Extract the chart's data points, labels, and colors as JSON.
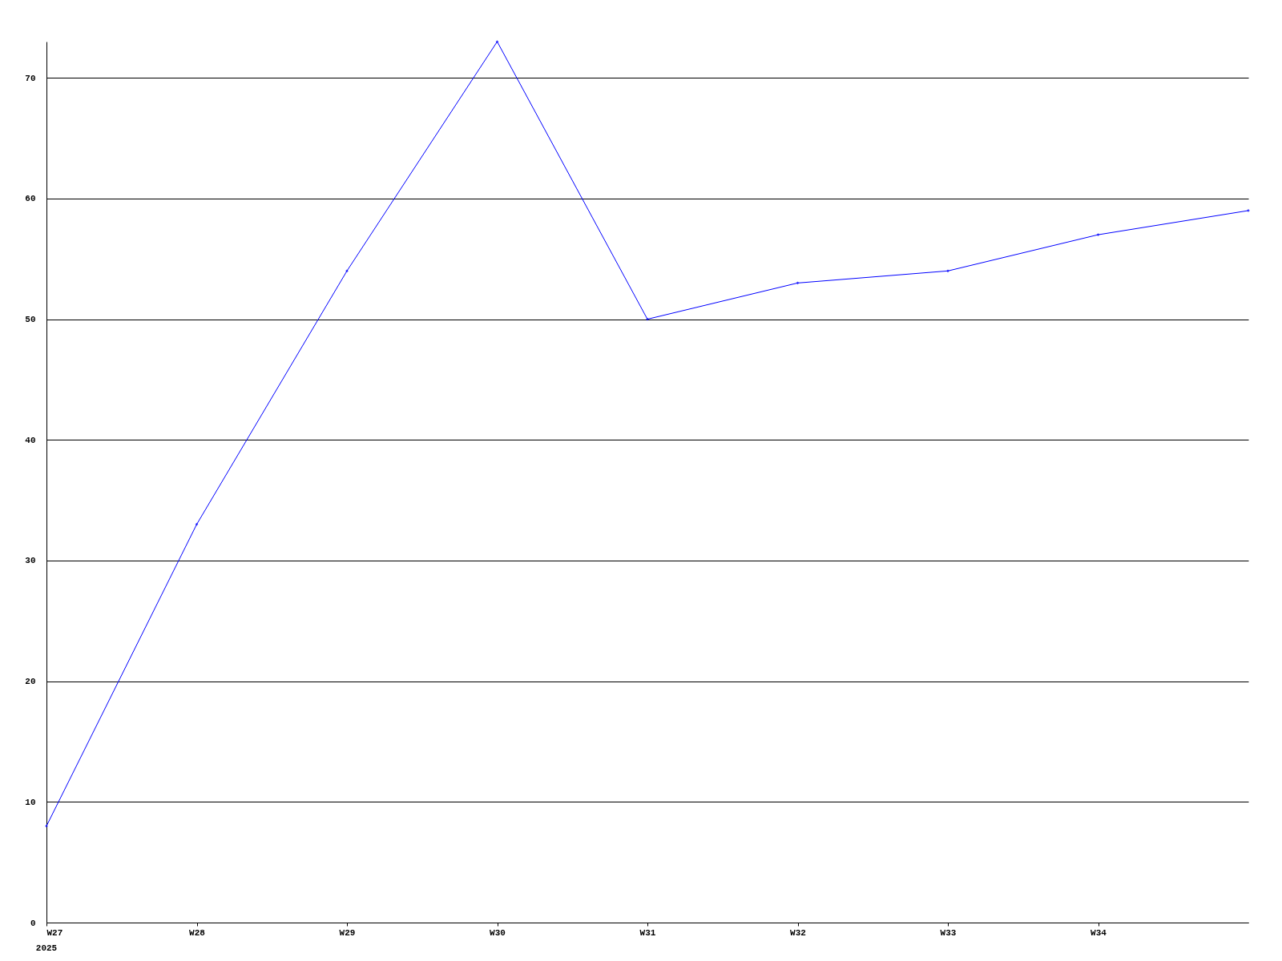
{
  "chart_data": {
    "type": "line",
    "categories": [
      "W27",
      "W28",
      "W29",
      "W30",
      "W31",
      "W32",
      "W33",
      "W34",
      null
    ],
    "series": [
      {
        "color": "#0000ff",
        "values": [
          8,
          33,
          54,
          73,
          50,
          53,
          54,
          57,
          59
        ]
      }
    ],
    "ylim": [
      0,
      73
    ],
    "yticks": [
      0,
      10,
      20,
      30,
      40,
      50,
      60,
      70
    ],
    "grid": "y",
    "marker": "diamond",
    "line_style": "solid",
    "legend": false,
    "annotations": [
      "2025"
    ]
  }
}
